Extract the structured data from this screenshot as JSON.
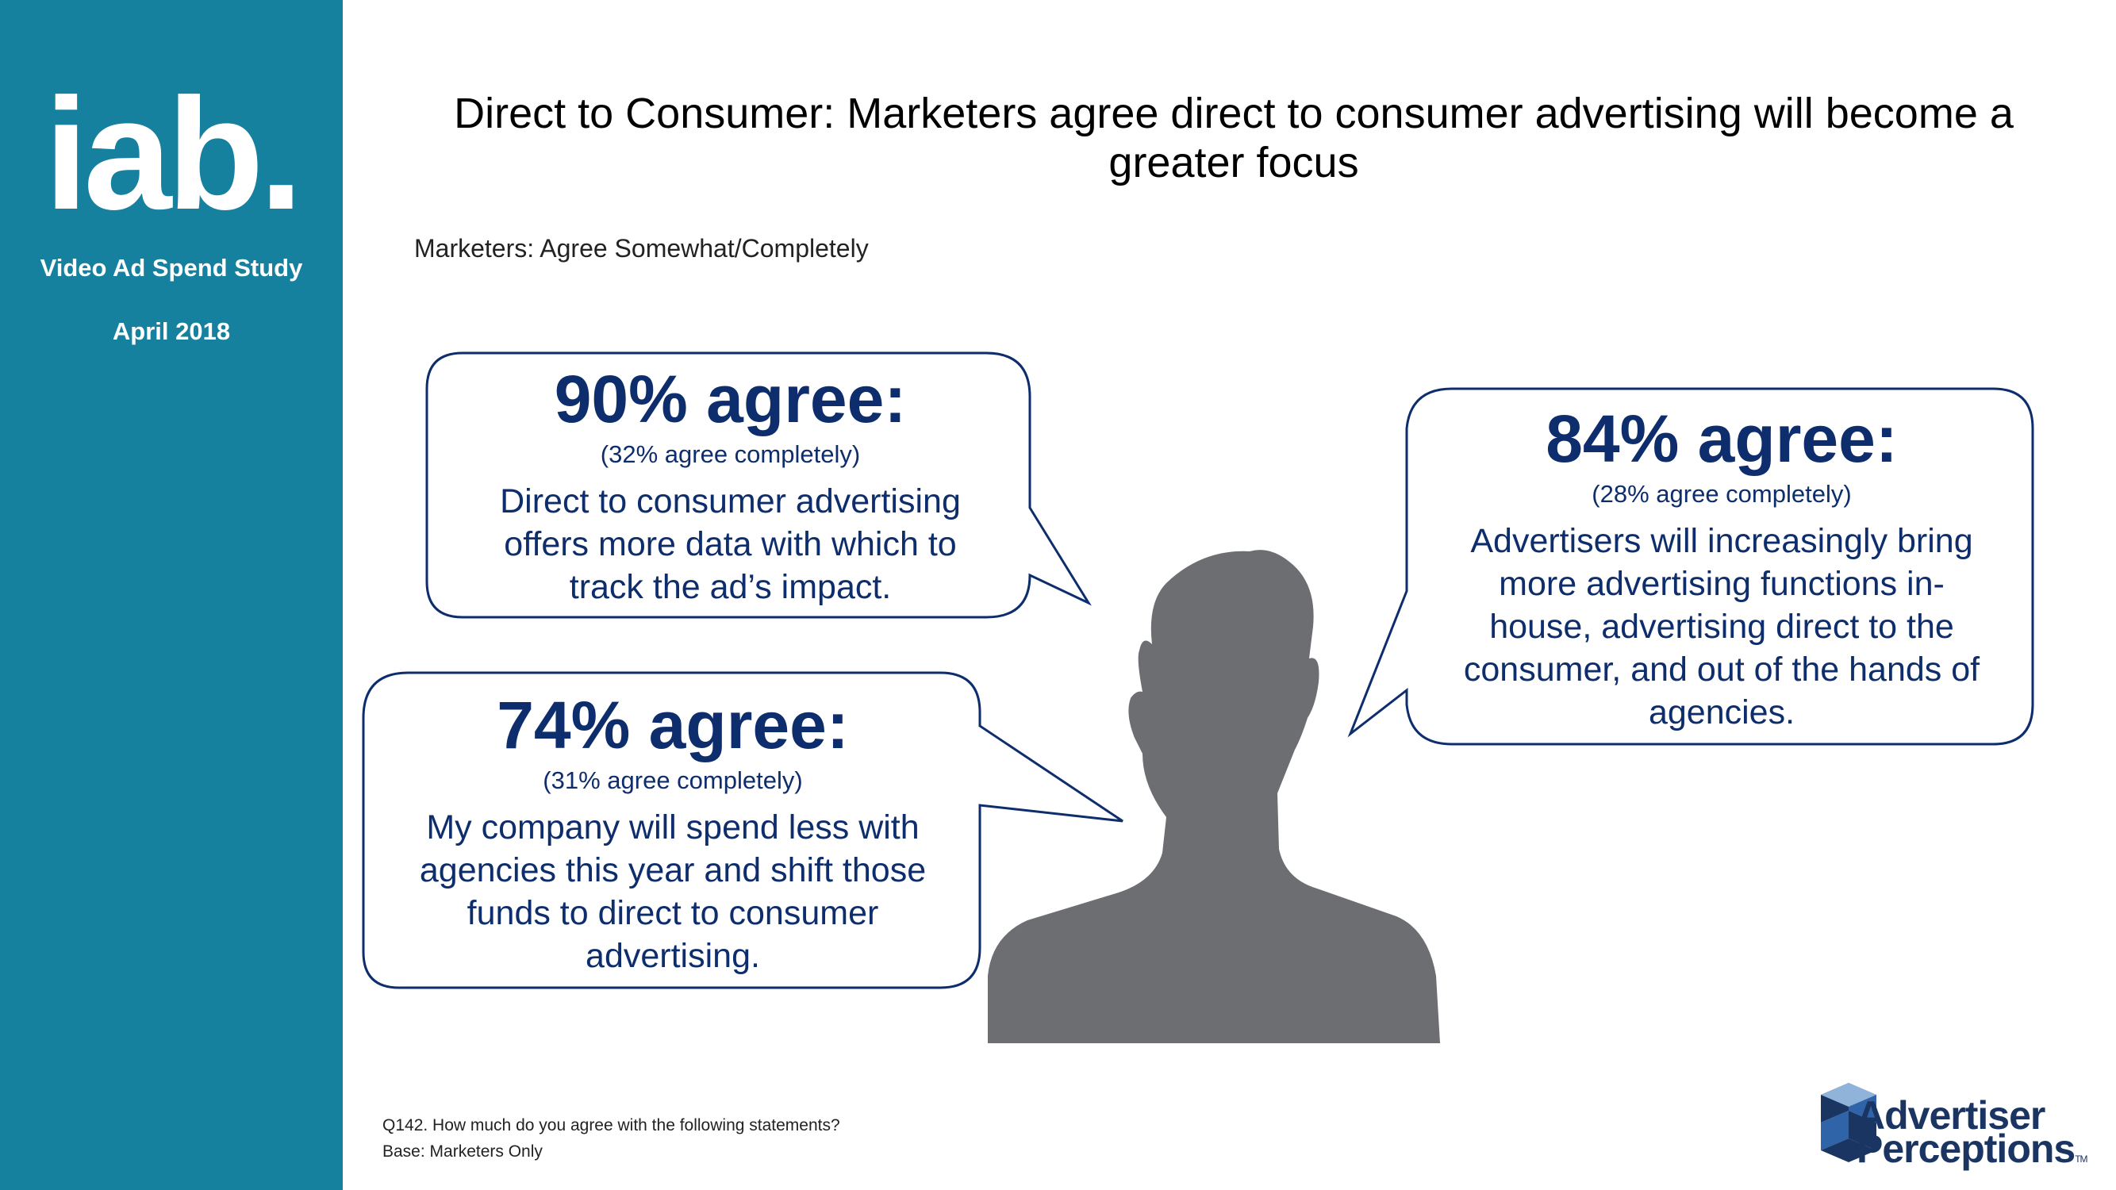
{
  "sidebar": {
    "logo_text": "iab.",
    "study_name": "Video Ad Spend Study",
    "study_date": "April 2018"
  },
  "header": {
    "title": "Direct to Consumer:  Marketers agree direct to consumer advertising will become a greater focus",
    "subtitle": "Marketers:  Agree Somewhat/Completely"
  },
  "bubbles": [
    {
      "headline": "90% agree:",
      "detail": "(32% agree completely)",
      "statement": "Direct to consumer advertising offers more data with which to track the ad’s impact."
    },
    {
      "headline": "74% agree:",
      "detail": "(31% agree completely)",
      "statement": "My company will spend less with agencies this year and shift those funds to direct to consumer advertising."
    },
    {
      "headline": "84% agree:",
      "detail": "(28% agree completely)",
      "statement": "Advertisers will increasingly bring more advertising functions in-house, advertising direct to the consumer, and out of the hands of agencies."
    }
  ],
  "footnote": {
    "question": "Q142. How much do you agree with the following statements?",
    "base": "Base: Marketers Only"
  },
  "brand": {
    "line1": "Advertiser",
    "line2": "Perceptions",
    "tm": "TM"
  },
  "colors": {
    "sidebar": "#16819f",
    "bubble_text": "#0d2d6c",
    "bubble_border": "#0d2d6c",
    "silhouette": "#6d6e71",
    "brand": "#1b3562"
  },
  "icons": {
    "person": "person-silhouette-icon",
    "brand_logo": "cube-logo-icon"
  }
}
